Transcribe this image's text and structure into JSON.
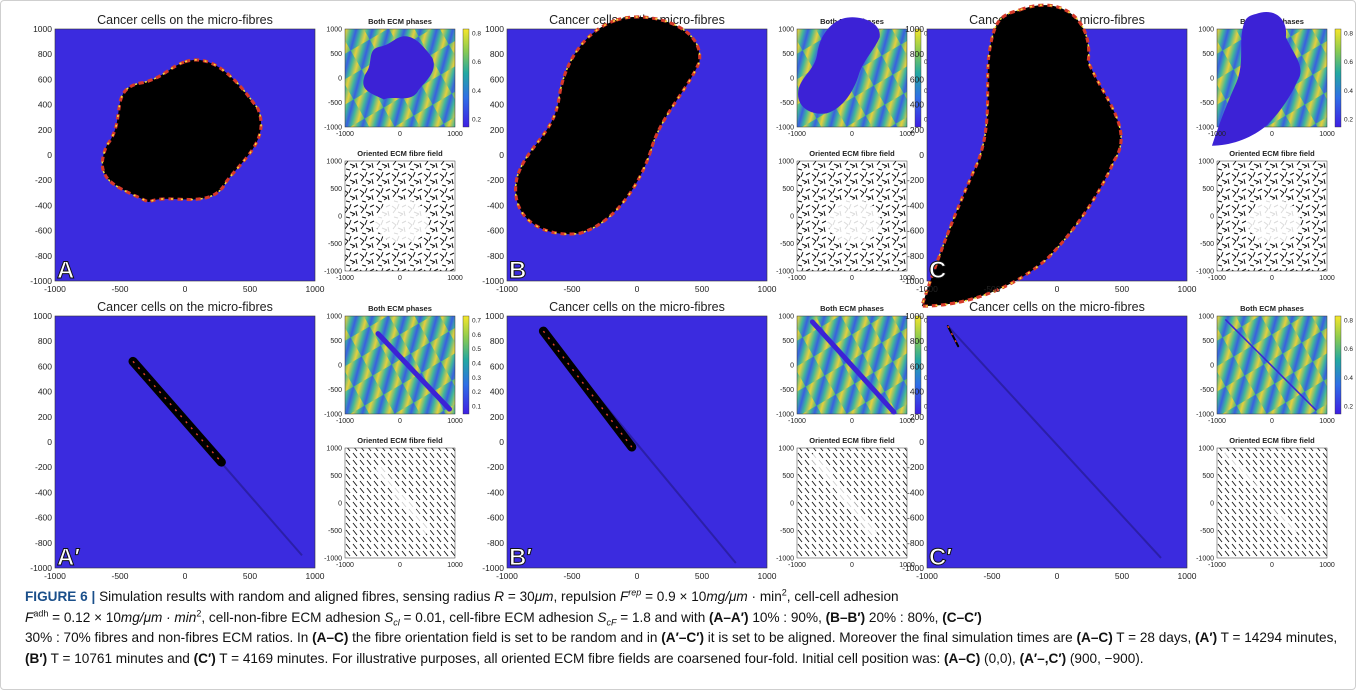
{
  "figure": {
    "colors": {
      "background": "#3b2bdf",
      "tumour": "#000000",
      "ecm_blue": "#3f27e0",
      "ecm_green": "#2fb38e",
      "ecm_yellow": "#ead03a"
    },
    "main_title": "Cancer cells on the micro-fibres",
    "ecm_title": "Both ECM phases",
    "fibre_title": "Oriented ECM fibre field",
    "main_yticks": [
      "1000",
      "800",
      "600",
      "400",
      "200",
      "0",
      "-200",
      "-400",
      "-600",
      "-800",
      "-1000"
    ],
    "main_xticks": [
      "-1000",
      "-500",
      "0",
      "500",
      "1000"
    ],
    "small_yticks": [
      "1000",
      "500",
      "0",
      "-500",
      "-1000"
    ],
    "small_xticks": [
      "-1000",
      "0",
      "1000"
    ],
    "panels": [
      {
        "label": "A",
        "colorbar_ticks": [
          "0.8",
          "0.6",
          "0.4",
          "0.2"
        ],
        "aligned": false
      },
      {
        "label": "B",
        "colorbar_ticks": [
          "0.8",
          "0.6",
          "0.4",
          "0.2"
        ],
        "aligned": false
      },
      {
        "label": "C",
        "colorbar_ticks": [
          "0.8",
          "0.6",
          "0.4",
          "0.2"
        ],
        "aligned": false
      },
      {
        "label": "A′",
        "colorbar_ticks": [
          "0.7",
          "0.6",
          "0.5",
          "0.4",
          "0.3",
          "0.2",
          "0.1"
        ],
        "aligned": true
      },
      {
        "label": "B′",
        "colorbar_ticks": [
          "0.8",
          "0.6",
          "0.4",
          "0.2"
        ],
        "aligned": true
      },
      {
        "label": "C′",
        "colorbar_ticks": [
          "0.8",
          "0.6",
          "0.4",
          "0.2"
        ],
        "aligned": true
      }
    ]
  },
  "caption": {
    "label": "FIGURE 6 |",
    "t1": "Simulation results with random and aligned fibres, sensing radius ",
    "R": "R",
    "t2": " = 30",
    "um": "μm",
    "t3": ", repulsion ",
    "F": "F",
    "rep": "rep",
    "t4": " = 0.9 × 10",
    "mgum": "mg/μm",
    "t5": " · min",
    "sq": "2",
    "t6": ", cell-cell adhesion",
    "F2": "F",
    "adh": "adh",
    "t7": " = 0.12 × 10",
    "mgum2": "mg/μm · min",
    "sq2": "2",
    "t8": ", cell-non-fibre ECM adhesion ",
    "S": "S",
    "cl": "cl",
    "t9": " = 0.01, cell-fibre ECM adhesion ",
    "S2": "S",
    "cF": "cF",
    "t10": " = 1.8 and with ",
    "r1": "(A–A′)",
    "t11": " 10% : 90%, ",
    "r2": "(B–B′)",
    "t12": " 20% : 80%, ",
    "r3": "(C–C′)",
    "t13": "30% : 70% fibres and non-fibres ECM ratios. In ",
    "r4": "(A–C)",
    "t14": " the fibre orientation field is set to be random and in ",
    "r5": "(A′–C′)",
    "t15": " it is set to be aligned. Moreover the final simulation times are ",
    "r6": "(A–C)",
    "t16": " T = 28 days, ",
    "r7": "(A′)",
    "t17": " T = 14294 minutes, ",
    "r8": "(B′)",
    "t18": " T = 10761 minutes and ",
    "r9": "(C′)",
    "t19": " T = 4169 minutes. For illustrative purposes, all oriented ECM fibre fields are coarsened four-fold. Initial cell position was: ",
    "r10": "(A–C)",
    "t20": " (0,0), ",
    "r11": "(A′–,C′)",
    "t21": " (900, −900)."
  }
}
